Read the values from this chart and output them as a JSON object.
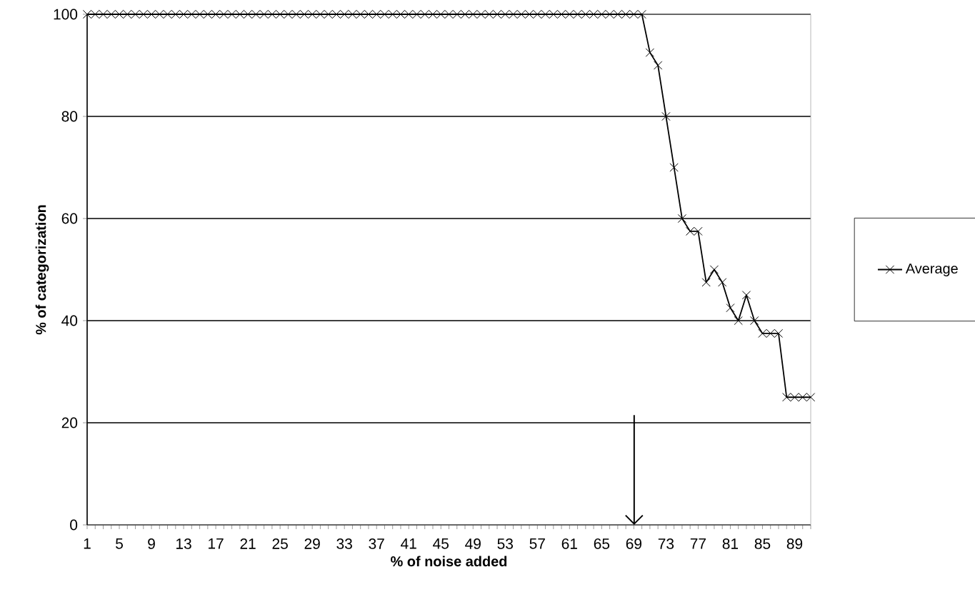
{
  "chart_data": {
    "type": "line",
    "xlabel": "% of noise added",
    "ylabel": "% of categorization",
    "categories": [
      "1",
      null,
      null,
      null,
      "5",
      null,
      null,
      null,
      "9",
      null,
      null,
      null,
      "13",
      null,
      null,
      null,
      "17",
      null,
      null,
      null,
      "21",
      null,
      null,
      null,
      "25",
      null,
      null,
      null,
      "29",
      null,
      null,
      null,
      "33",
      null,
      null,
      null,
      "37",
      null,
      null,
      null,
      "41",
      null,
      null,
      null,
      "45",
      null,
      null,
      null,
      "49",
      null,
      null,
      null,
      "53",
      null,
      null,
      null,
      "57",
      null,
      null,
      null,
      "61",
      null,
      null,
      null,
      "65",
      null,
      null,
      null,
      "69",
      null,
      null,
      null,
      "73",
      null,
      null,
      null,
      "77",
      null,
      null,
      null,
      "81",
      null,
      null,
      null,
      "85",
      null,
      null,
      null,
      "89",
      null,
      null
    ],
    "series": [
      {
        "name": "Average",
        "color": "#000000",
        "values": [
          100,
          100,
          100,
          100,
          100,
          100,
          100,
          100,
          100,
          100,
          100,
          100,
          100,
          100,
          100,
          100,
          100,
          100,
          100,
          100,
          100,
          100,
          100,
          100,
          100,
          100,
          100,
          100,
          100,
          100,
          100,
          100,
          100,
          100,
          100,
          100,
          100,
          100,
          100,
          100,
          100,
          100,
          100,
          100,
          100,
          100,
          100,
          100,
          100,
          100,
          100,
          100,
          100,
          100,
          100,
          100,
          100,
          100,
          100,
          100,
          100,
          100,
          100,
          100,
          100,
          100,
          100,
          100,
          100,
          100,
          92.5,
          90,
          80,
          70,
          60,
          57.5,
          57.5,
          47.5,
          50,
          47.5,
          42.5,
          40,
          45,
          40,
          37.5,
          37.5,
          37.5,
          25,
          25,
          25,
          25
        ]
      }
    ],
    "ylim": [
      0,
      100
    ],
    "yticks": [
      0,
      20,
      40,
      60,
      80,
      100
    ],
    "grid": "y",
    "legend": "right",
    "marker": "cross",
    "line_style": "solid"
  }
}
